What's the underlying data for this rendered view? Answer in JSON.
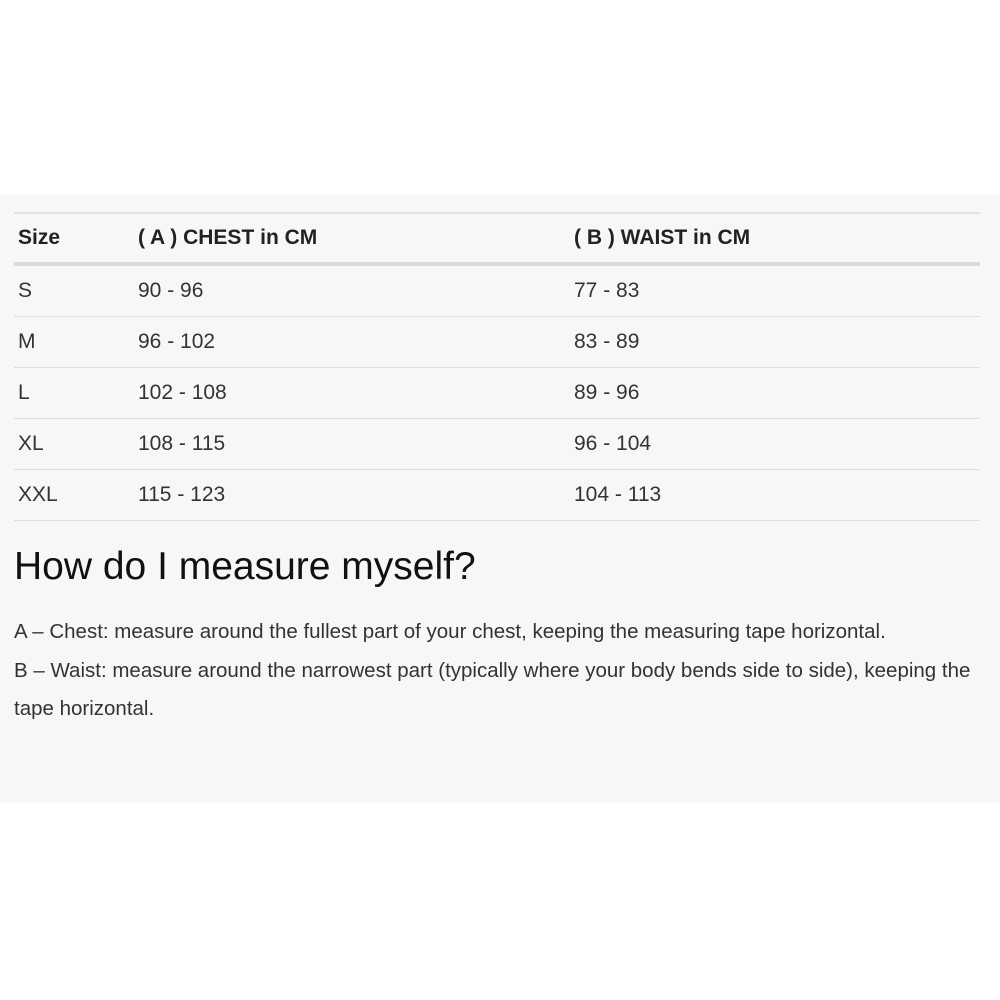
{
  "size_table": {
    "headers": [
      "Size",
      "( A ) CHEST in CM",
      "( B ) WAIST in CM"
    ],
    "rows": [
      [
        "S",
        "90 - 96",
        "77 - 83"
      ],
      [
        "M",
        "96 - 102",
        "83 - 89"
      ],
      [
        "L",
        "102 - 108",
        "89 - 96"
      ],
      [
        "XL",
        "108 - 115",
        "96 - 104"
      ],
      [
        "XXL",
        "115 - 123",
        "104 - 113"
      ]
    ]
  },
  "measure": {
    "heading": "How do I measure myself?",
    "chest": "A – Chest: measure around the fullest part of your chest, keeping the measuring tape horizontal.",
    "waist": "B – Waist: measure around the narrowest part (typically where your body bends side to side), keeping the tape horizontal."
  }
}
